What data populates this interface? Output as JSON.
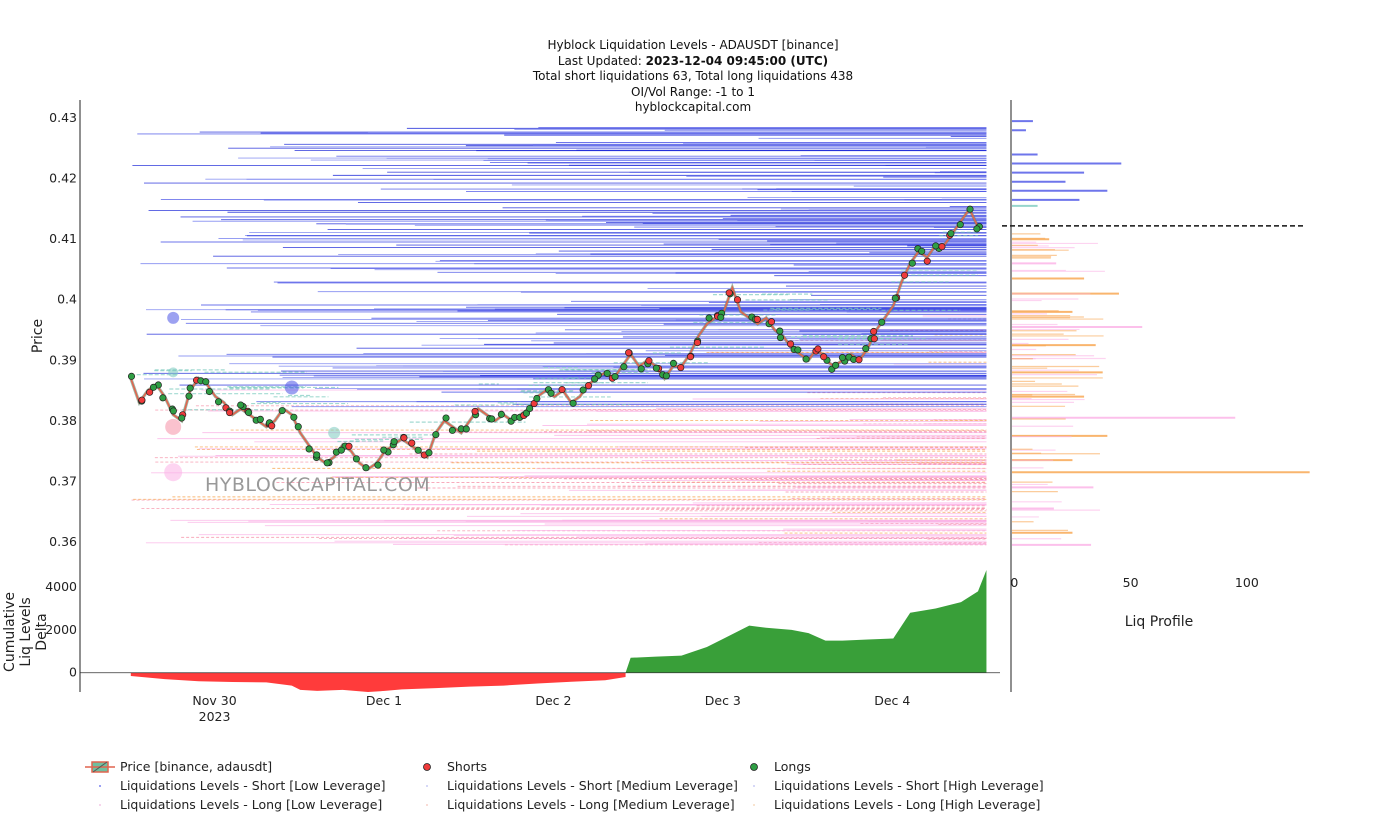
{
  "header": {
    "line1": "Hyblock Liquidation Levels - ADAUSDT [binance]",
    "line2_prefix": "Last Updated: ",
    "line2_bold": "2023-12-04 09:45:00 (UTC)",
    "line3": "Total short liquidations 63, Total long liquidations 438",
    "line4": "OI/Vol Range: -1 to 1",
    "line5": "hyblockcapital.com"
  },
  "watermark": "HYBLOCKCAPITAL.COM",
  "colors": {
    "short_low": "#7b84f0",
    "short_med": "#4a53e6",
    "short_high": "#1f2bd9",
    "long_low": "#fbb0e6",
    "long_med": "#f58fa6",
    "long_high": "#f7a24a",
    "teal": "#7ccbbf",
    "price": "#e0644f",
    "short_dot": "#ef3b3b",
    "long_dot": "#2f9e44",
    "delta_neg": "#ff3030",
    "delta_pos": "#2e9a2e"
  },
  "chart_data": [
    {
      "type": "line",
      "name": "price-panel",
      "ylabel": "Price",
      "ylim": [
        0.357,
        0.433
      ],
      "yticks": [
        0.36,
        0.37,
        0.38,
        0.39,
        0.4,
        0.41,
        0.42,
        0.43
      ],
      "ytick_labels": [
        "0.36",
        "0.37",
        "0.38",
        "0.39",
        "0.4",
        "0.41",
        "0.42",
        "0.43"
      ],
      "x_range_days": [
        -0.3,
        5.13
      ],
      "xticks": [
        0.5,
        1.5,
        2.5,
        3.5,
        4.5
      ],
      "xtick_labels": [
        "Nov 30\n2023",
        "Dec 1",
        "Dec 2",
        "Dec 3",
        "Dec 4"
      ],
      "current_price": 0.4122,
      "price_series": [
        [
          0.0,
          0.387
        ],
        [
          0.05,
          0.383
        ],
        [
          0.1,
          0.385
        ],
        [
          0.15,
          0.386
        ],
        [
          0.2,
          0.384
        ],
        [
          0.25,
          0.381
        ],
        [
          0.3,
          0.38
        ],
        [
          0.35,
          0.385
        ],
        [
          0.4,
          0.387
        ],
        [
          0.45,
          0.386
        ],
        [
          0.5,
          0.384
        ],
        [
          0.55,
          0.383
        ],
        [
          0.6,
          0.381
        ],
        [
          0.65,
          0.382
        ],
        [
          0.7,
          0.381
        ],
        [
          0.75,
          0.38
        ],
        [
          0.8,
          0.379
        ],
        [
          0.85,
          0.38
        ],
        [
          0.9,
          0.382
        ],
        [
          0.95,
          0.381
        ],
        [
          1.0,
          0.378
        ],
        [
          1.05,
          0.376
        ],
        [
          1.1,
          0.374
        ],
        [
          1.15,
          0.373
        ],
        [
          1.2,
          0.374
        ],
        [
          1.25,
          0.376
        ],
        [
          1.3,
          0.375
        ],
        [
          1.35,
          0.373
        ],
        [
          1.4,
          0.372
        ],
        [
          1.45,
          0.373
        ],
        [
          1.5,
          0.375
        ],
        [
          1.55,
          0.376
        ],
        [
          1.6,
          0.377
        ],
        [
          1.65,
          0.376
        ],
        [
          1.7,
          0.375
        ],
        [
          1.75,
          0.374
        ],
        [
          1.8,
          0.378
        ],
        [
          1.85,
          0.38
        ],
        [
          1.9,
          0.379
        ],
        [
          1.95,
          0.378
        ],
        [
          2.0,
          0.38
        ],
        [
          2.05,
          0.382
        ],
        [
          2.1,
          0.381
        ],
        [
          2.15,
          0.38
        ],
        [
          2.2,
          0.381
        ],
        [
          2.25,
          0.38
        ],
        [
          2.3,
          0.381
        ],
        [
          2.35,
          0.382
        ],
        [
          2.4,
          0.384
        ],
        [
          2.45,
          0.385
        ],
        [
          2.5,
          0.384
        ],
        [
          2.55,
          0.385
        ],
        [
          2.6,
          0.383
        ],
        [
          2.65,
          0.384
        ],
        [
          2.7,
          0.386
        ],
        [
          2.75,
          0.387
        ],
        [
          2.8,
          0.388
        ],
        [
          2.85,
          0.387
        ],
        [
          2.9,
          0.389
        ],
        [
          2.95,
          0.391
        ],
        [
          3.0,
          0.389
        ],
        [
          3.05,
          0.39
        ],
        [
          3.1,
          0.389
        ],
        [
          3.15,
          0.387
        ],
        [
          3.2,
          0.389
        ],
        [
          3.25,
          0.389
        ],
        [
          3.3,
          0.391
        ],
        [
          3.35,
          0.394
        ],
        [
          3.4,
          0.396
        ],
        [
          3.45,
          0.397
        ],
        [
          3.5,
          0.398
        ],
        [
          3.55,
          0.402
        ],
        [
          3.6,
          0.398
        ],
        [
          3.65,
          0.397
        ],
        [
          3.7,
          0.396
        ],
        [
          3.75,
          0.397
        ],
        [
          3.8,
          0.395
        ],
        [
          3.85,
          0.394
        ],
        [
          3.9,
          0.392
        ],
        [
          3.95,
          0.391
        ],
        [
          4.0,
          0.39
        ],
        [
          4.05,
          0.392
        ],
        [
          4.1,
          0.39
        ],
        [
          4.15,
          0.389
        ],
        [
          4.2,
          0.39
        ],
        [
          4.25,
          0.391
        ],
        [
          4.3,
          0.39
        ],
        [
          4.35,
          0.392
        ],
        [
          4.4,
          0.395
        ],
        [
          4.45,
          0.397
        ],
        [
          4.5,
          0.399
        ],
        [
          4.55,
          0.403
        ],
        [
          4.6,
          0.406
        ],
        [
          4.65,
          0.408
        ],
        [
          4.7,
          0.407
        ],
        [
          4.75,
          0.409
        ],
        [
          4.8,
          0.409
        ],
        [
          4.85,
          0.411
        ],
        [
          4.9,
          0.413
        ],
        [
          4.95,
          0.415
        ],
        [
          5.0,
          0.412
        ]
      ]
    },
    {
      "type": "area",
      "name": "delta-panel",
      "ylabel": "Cumulative Liq Levels Delta",
      "ylim": [
        -900,
        4800
      ],
      "yticks": [
        0,
        2000,
        4000
      ],
      "ytick_labels": [
        "0",
        "2000",
        "4000"
      ],
      "delta_series": [
        [
          0.0,
          -150
        ],
        [
          0.2,
          -300
        ],
        [
          0.4,
          -400
        ],
        [
          0.6,
          -430
        ],
        [
          0.8,
          -450
        ],
        [
          0.95,
          -600
        ],
        [
          1.0,
          -800
        ],
        [
          1.1,
          -850
        ],
        [
          1.25,
          -800
        ],
        [
          1.4,
          -900
        ],
        [
          1.5,
          -850
        ],
        [
          1.6,
          -780
        ],
        [
          1.8,
          -720
        ],
        [
          2.0,
          -650
        ],
        [
          2.2,
          -600
        ],
        [
          2.4,
          -500
        ],
        [
          2.6,
          -420
        ],
        [
          2.8,
          -350
        ],
        [
          2.92,
          -200
        ],
        [
          2.95,
          700
        ],
        [
          3.1,
          750
        ],
        [
          3.25,
          800
        ],
        [
          3.4,
          1200
        ],
        [
          3.5,
          1600
        ],
        [
          3.65,
          2200
        ],
        [
          3.75,
          2100
        ],
        [
          3.9,
          2000
        ],
        [
          4.0,
          1850
        ],
        [
          4.1,
          1500
        ],
        [
          4.2,
          1500
        ],
        [
          4.35,
          1550
        ],
        [
          4.5,
          1600
        ],
        [
          4.6,
          2800
        ],
        [
          4.75,
          3000
        ],
        [
          4.9,
          3300
        ],
        [
          5.0,
          3800
        ],
        [
          5.05,
          4800
        ]
      ]
    },
    {
      "type": "bar",
      "name": "liq-profile",
      "xlabel": "Liq Profile",
      "xlim": [
        -1,
        125
      ],
      "xticks": [
        0,
        50,
        100
      ],
      "xtick_labels": [
        "0",
        "50",
        "100"
      ],
      "bins": [
        {
          "price": 0.4295,
          "value": 8,
          "side": "short"
        },
        {
          "price": 0.428,
          "value": 5,
          "side": "short"
        },
        {
          "price": 0.424,
          "value": 10,
          "side": "short"
        },
        {
          "price": 0.4225,
          "value": 46,
          "side": "short"
        },
        {
          "price": 0.421,
          "value": 30,
          "side": "short"
        },
        {
          "price": 0.4195,
          "value": 22,
          "side": "short"
        },
        {
          "price": 0.418,
          "value": 40,
          "side": "short"
        },
        {
          "price": 0.4165,
          "value": 28,
          "side": "short"
        },
        {
          "price": 0.4155,
          "value": 10,
          "side": "teal"
        },
        {
          "price": 0.41,
          "value": 15,
          "side": "long"
        },
        {
          "price": 0.406,
          "value": 18,
          "side": "long"
        },
        {
          "price": 0.4035,
          "value": 30,
          "side": "long"
        },
        {
          "price": 0.401,
          "value": 45,
          "side": "long"
        },
        {
          "price": 0.398,
          "value": 25,
          "side": "long"
        },
        {
          "price": 0.3955,
          "value": 55,
          "side": "long"
        },
        {
          "price": 0.3925,
          "value": 35,
          "side": "long"
        },
        {
          "price": 0.388,
          "value": 38,
          "side": "long"
        },
        {
          "price": 0.384,
          "value": 30,
          "side": "long"
        },
        {
          "price": 0.3805,
          "value": 95,
          "side": "long"
        },
        {
          "price": 0.3775,
          "value": 40,
          "side": "long"
        },
        {
          "price": 0.3735,
          "value": 25,
          "side": "long"
        },
        {
          "price": 0.3715,
          "value": 127,
          "side": "long"
        },
        {
          "price": 0.369,
          "value": 34,
          "side": "long"
        },
        {
          "price": 0.3655,
          "value": 17,
          "side": "long"
        },
        {
          "price": 0.3615,
          "value": 25,
          "side": "long"
        },
        {
          "price": 0.3595,
          "value": 33,
          "side": "long"
        }
      ]
    }
  ],
  "legend": {
    "rows": [
      [
        "Price [binance, adausdt]",
        "Shorts",
        "Longs"
      ],
      [
        "Liquidations Levels - Short [Low Leverage]",
        "Liquidations Levels - Short [Medium Leverage]",
        "Liquidations Levels - Short [High Leverage]"
      ],
      [
        "Liquidations Levels - Long [Low Leverage]",
        "Liquidations Levels - Long [Medium Leverage]",
        "Liquidations Levels - Long [High Leverage]"
      ]
    ]
  }
}
